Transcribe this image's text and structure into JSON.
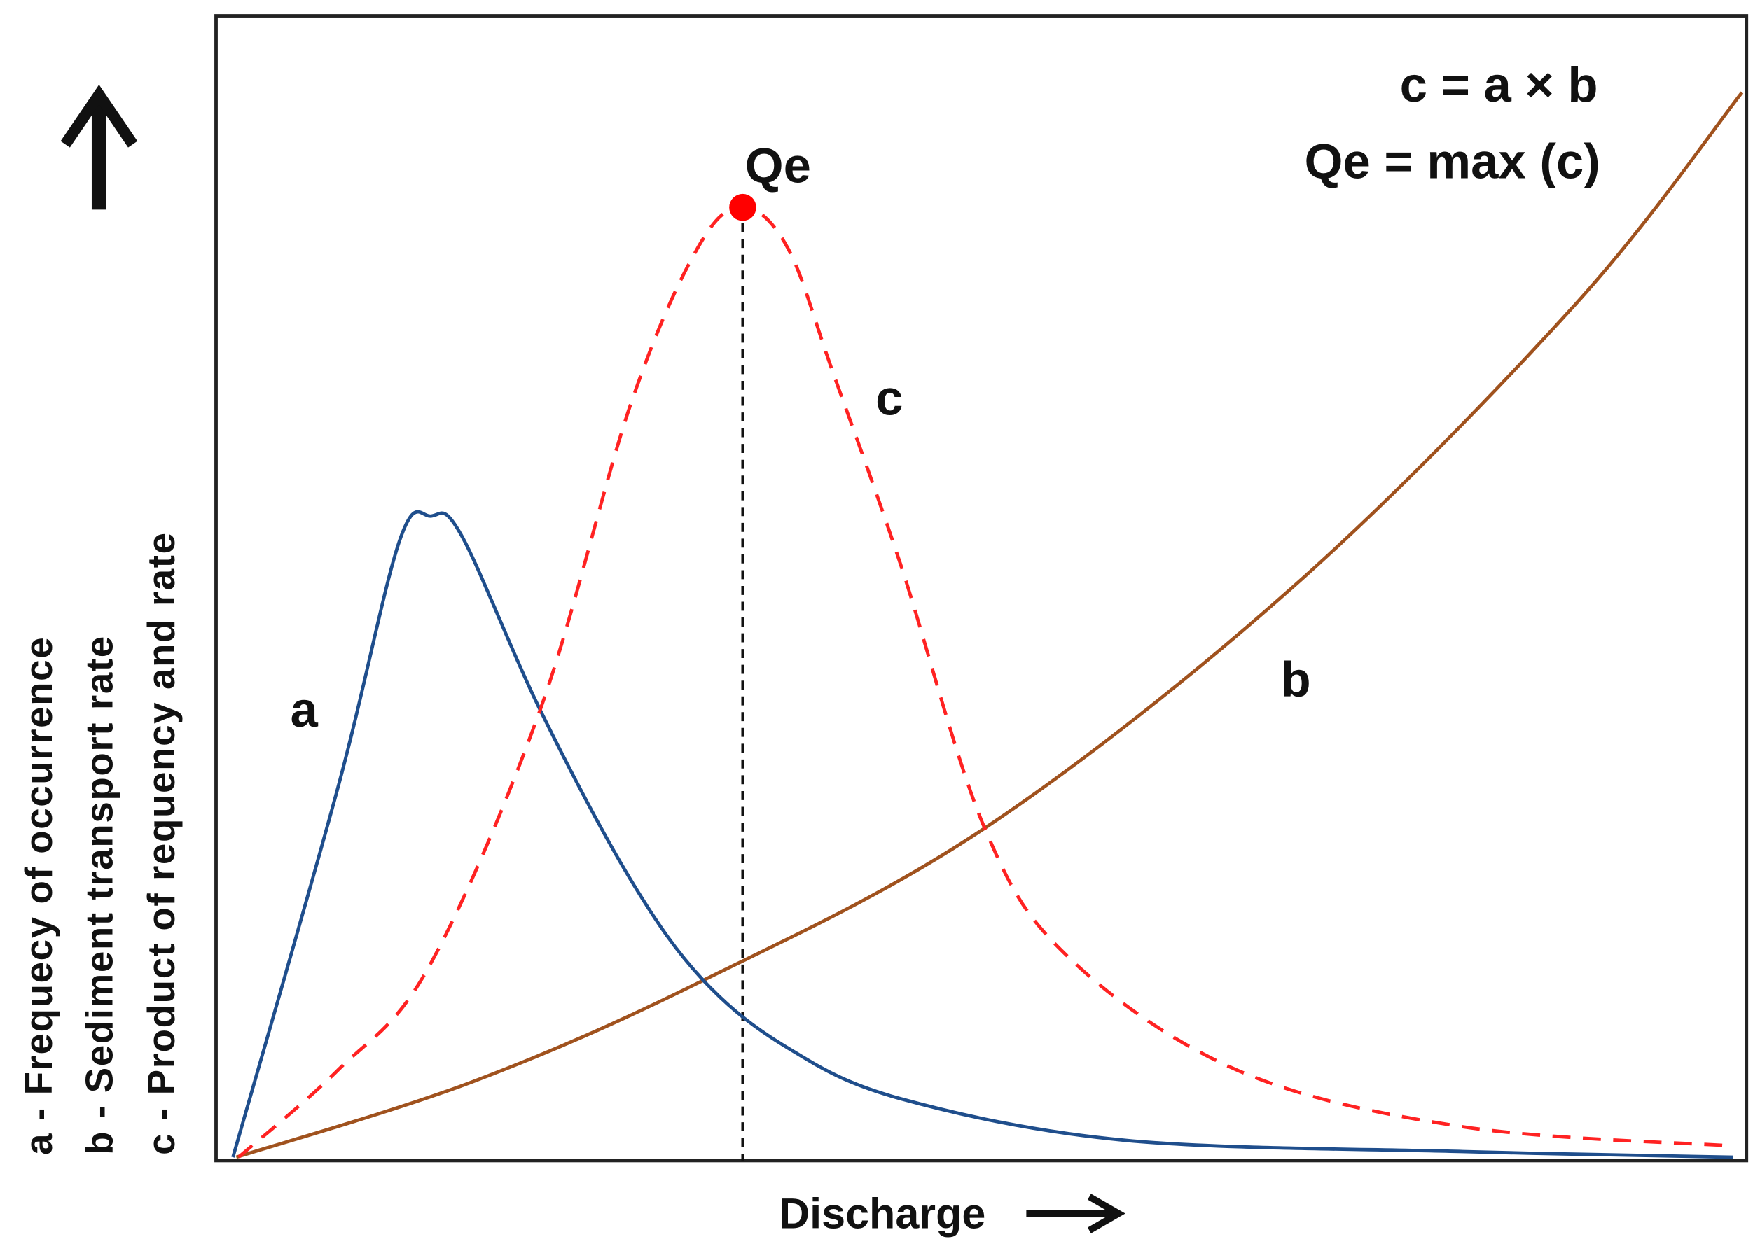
{
  "annotations": {
    "equation": "c = a × b",
    "definition": "Qe = max (c)",
    "peak_label": "Qe",
    "curve_a": "a",
    "curve_b": "b",
    "curve_c": "c"
  },
  "x_axis": {
    "label": "Discharge"
  },
  "y_axis": {
    "labels": [
      "a - Frequecy of occurrence",
      "b - Sediment transport rate",
      "c - Product of requency and rate"
    ]
  }
}
